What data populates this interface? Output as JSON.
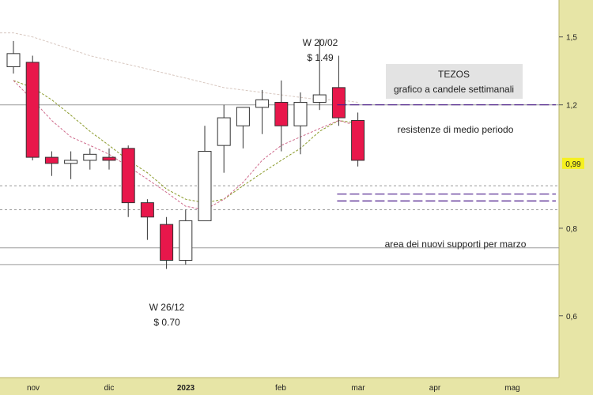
{
  "chart_data": {
    "type": "candlestick",
    "title": "TEZOS",
    "subtitle": "grafico a candele settimanali",
    "x_tick_labels": [
      "nov",
      "dic",
      "2023",
      "feb",
      "mar",
      "apr",
      "mag"
    ],
    "y_tick_labels": [
      "1,5",
      "1,2",
      "0,8",
      "0,6"
    ],
    "y_ticks": [
      1.5,
      1.2,
      0.8,
      0.6
    ],
    "ylim": [
      0.5,
      1.65
    ],
    "y_scale": "log",
    "current_price_label": "0,99",
    "current_price": 0.99,
    "candles": [
      {
        "open": 1.36,
        "high": 1.48,
        "low": 1.33,
        "close": 1.42
      },
      {
        "open": 1.38,
        "high": 1.41,
        "low": 1.0,
        "close": 1.01
      },
      {
        "open": 1.01,
        "high": 1.03,
        "low": 0.95,
        "close": 0.99
      },
      {
        "open": 0.99,
        "high": 1.03,
        "low": 0.94,
        "close": 1.0
      },
      {
        "open": 1.0,
        "high": 1.04,
        "low": 0.97,
        "close": 1.02
      },
      {
        "open": 1.01,
        "high": 1.04,
        "low": 0.97,
        "close": 1.0
      },
      {
        "open": 1.04,
        "high": 1.05,
        "low": 0.83,
        "close": 0.87
      },
      {
        "open": 0.87,
        "high": 0.88,
        "low": 0.77,
        "close": 0.83
      },
      {
        "open": 0.81,
        "high": 0.83,
        "low": 0.7,
        "close": 0.72
      },
      {
        "open": 0.72,
        "high": 0.85,
        "low": 0.71,
        "close": 0.82
      },
      {
        "open": 0.82,
        "high": 1.12,
        "low": 0.82,
        "close": 1.03
      },
      {
        "open": 1.05,
        "high": 1.2,
        "low": 0.96,
        "close": 1.15
      },
      {
        "open": 1.12,
        "high": 1.19,
        "low": 1.04,
        "close": 1.19
      },
      {
        "open": 1.19,
        "high": 1.26,
        "low": 1.09,
        "close": 1.22
      },
      {
        "open": 1.21,
        "high": 1.3,
        "low": 1.03,
        "close": 1.12
      },
      {
        "open": 1.12,
        "high": 1.25,
        "low": 1.02,
        "close": 1.21
      },
      {
        "open": 1.21,
        "high": 1.49,
        "low": 1.18,
        "close": 1.24
      },
      {
        "open": 1.27,
        "high": 1.41,
        "low": 1.12,
        "close": 1.15
      },
      {
        "open": 1.14,
        "high": 1.17,
        "low": 0.98,
        "close": 1.0
      }
    ],
    "moving_average_short": [
      1.3,
      1.22,
      1.14,
      1.08,
      1.05,
      1.02,
      0.98,
      0.94,
      0.9,
      0.86,
      0.85,
      0.88,
      0.93,
      1.0,
      1.05,
      1.08,
      1.11,
      1.14,
      1.12
    ],
    "moving_average_medium": [
      1.3,
      1.27,
      1.22,
      1.16,
      1.1,
      1.05,
      1.0,
      0.96,
      0.91,
      0.88,
      0.87,
      0.88,
      0.92,
      0.96,
      1.0,
      1.04,
      1.1,
      1.14,
      1.13
    ],
    "moving_average_long": [
      1.52,
      1.5,
      1.47,
      1.44,
      1.41,
      1.39,
      1.37,
      1.35,
      1.33,
      1.31,
      1.29,
      1.27,
      1.26,
      1.25,
      1.24,
      1.23,
      1.22,
      1.22,
      1.21
    ],
    "horizontal_lines": [
      1.2,
      0.92,
      0.85,
      0.75,
      0.71
    ],
    "resistance": {
      "level": 1.2,
      "label": "resistenze di medio periodo"
    },
    "supports": {
      "levels": [
        0.895,
        0.875
      ],
      "label": "area dei nuovi supporti per marzo"
    },
    "annotations": [
      {
        "label": "W 20/02",
        "value_label": "$ 1.49",
        "candle_index": 16,
        "value": 1.49
      },
      {
        "label": "W 26/12",
        "value_label": "$ 0.70",
        "candle_index": 8,
        "value": 0.7
      }
    ],
    "colors": {
      "bull_fill": "#ffffff",
      "bear_fill": "#e8174b",
      "candle_stroke": "#333333",
      "axis_background": "#e7e5a6",
      "price_tag": "#f5f01f",
      "ma_short": "#cf6b8c",
      "ma_medium": "#8a9a2a",
      "ma_long": "#d8c8c0",
      "hline": "#9a9a9a",
      "level_line": "#4b1c8a",
      "title_box": "#e3e3e3"
    },
    "grid": false
  }
}
